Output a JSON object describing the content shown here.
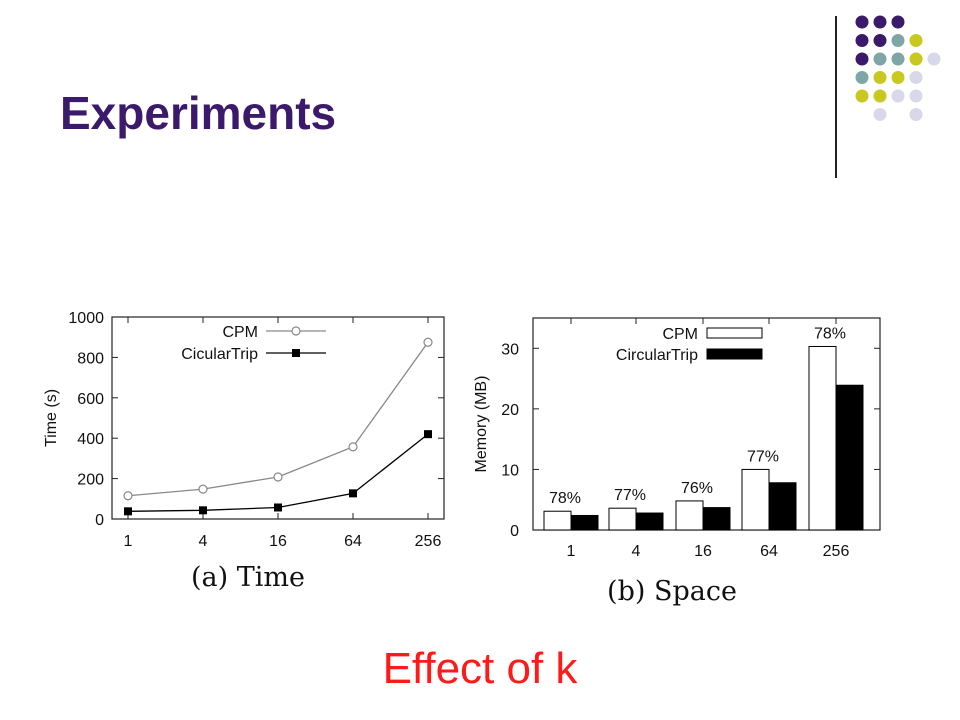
{
  "slide": {
    "title": "Experiments",
    "caption": "Effect of k"
  },
  "decor": {
    "dot_colors": [
      "#3b1a6b",
      "#7fa6a6",
      "#c8c820",
      "#d8d8ea"
    ],
    "divider_color": "#222222"
  },
  "chart_data": [
    {
      "type": "line",
      "caption": "(a) Time",
      "categories": [
        "1",
        "4",
        "16",
        "64",
        "256"
      ],
      "ylabel": "Time (s)",
      "xlabel": "",
      "ylim": [
        0,
        1000
      ],
      "yticks": [
        0,
        200,
        400,
        600,
        800,
        1000
      ],
      "series": [
        {
          "name": "CPM",
          "values": [
            115,
            148,
            208,
            357,
            875
          ],
          "marker": "open-circle",
          "color": "#888888"
        },
        {
          "name": "CicularTrip",
          "values": [
            38,
            43,
            57,
            127,
            420
          ],
          "marker": "filled-square",
          "color": "#000000"
        }
      ],
      "legend_position": "top-left",
      "grid": false
    },
    {
      "type": "bar",
      "caption": "(b) Space",
      "categories": [
        "1",
        "4",
        "16",
        "64",
        "256"
      ],
      "ylabel": "Memory (MB)",
      "xlabel": "",
      "ylim": [
        0,
        35
      ],
      "yticks": [
        0,
        10,
        20,
        30
      ],
      "series": [
        {
          "name": "CPM",
          "values": [
            3.1,
            3.6,
            4.8,
            10.0,
            30.3
          ],
          "color": "#ffffff"
        },
        {
          "name": "CircularTrip",
          "values": [
            2.4,
            2.8,
            3.7,
            7.8,
            23.9
          ],
          "color": "#000000"
        }
      ],
      "annotations": [
        "78%",
        "77%",
        "76%",
        "77%",
        "78%"
      ],
      "legend_position": "top-right",
      "grid": false
    }
  ]
}
